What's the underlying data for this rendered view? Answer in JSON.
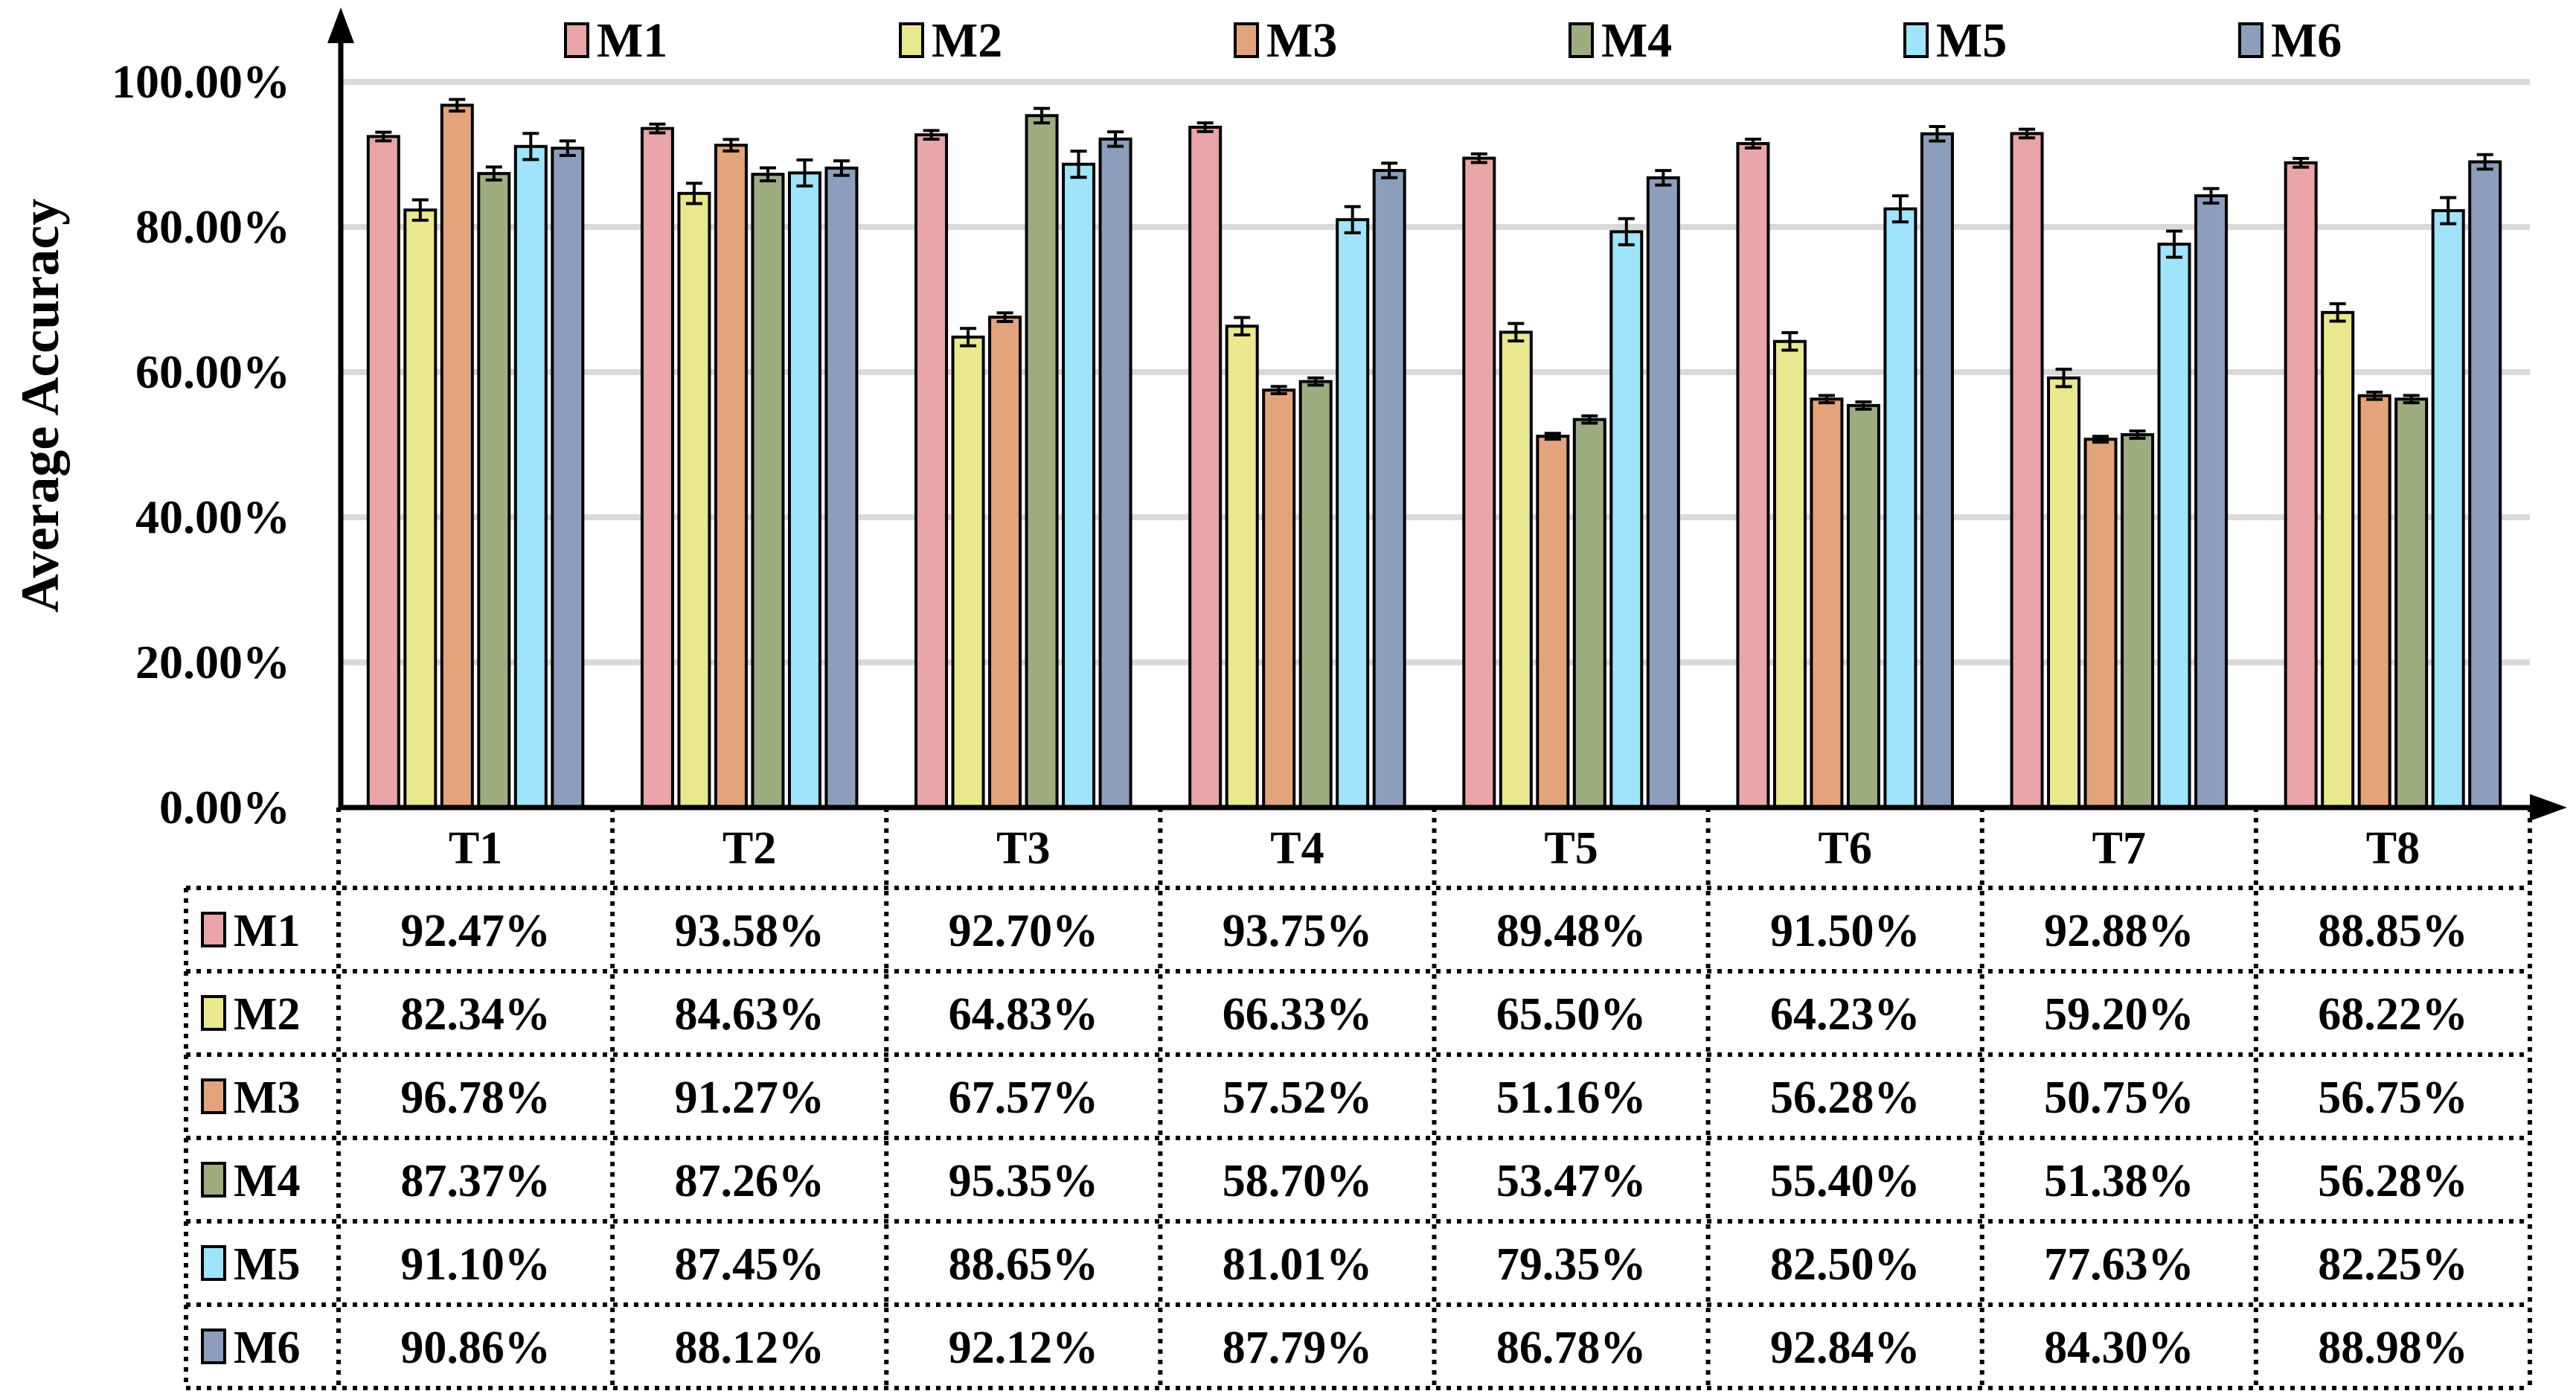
{
  "chart_data": {
    "type": "bar",
    "title": "",
    "xlabel": "",
    "ylabel": "Average Accuracy",
    "ylim": [
      0,
      100
    ],
    "yticks": [
      "0.00%",
      "20.00%",
      "40.00%",
      "60.00%",
      "80.00%",
      "100.00%"
    ],
    "grid": true,
    "legend_position": "top",
    "categories": [
      "T1",
      "T2",
      "T3",
      "T4",
      "T5",
      "T6",
      "T7",
      "T8"
    ],
    "series": [
      {
        "name": "M1",
        "color": "#E9A5A7",
        "values": [
          92.47,
          93.58,
          92.7,
          93.75,
          89.48,
          91.5,
          92.88,
          88.85
        ],
        "labels": [
          "92.47%",
          "93.58%",
          "92.70%",
          "93.75%",
          "89.48%",
          "91.50%",
          "92.88%",
          "88.85%"
        ],
        "errors": [
          0.6,
          0.6,
          0.6,
          0.6,
          0.6,
          0.6,
          0.6,
          0.6
        ]
      },
      {
        "name": "M2",
        "color": "#E9E88F",
        "values": [
          82.34,
          84.63,
          64.83,
          66.33,
          65.5,
          64.23,
          59.2,
          68.22
        ],
        "labels": [
          "82.34%",
          "84.63%",
          "64.83%",
          "66.33%",
          "65.50%",
          "64.23%",
          "59.20%",
          "68.22%"
        ],
        "errors": [
          1.4,
          1.4,
          1.2,
          1.2,
          1.2,
          1.2,
          1.2,
          1.2
        ]
      },
      {
        "name": "M3",
        "color": "#E3A47C",
        "values": [
          96.78,
          91.27,
          67.57,
          57.52,
          51.16,
          56.28,
          50.75,
          56.75
        ],
        "labels": [
          "96.78%",
          "91.27%",
          "67.57%",
          "57.52%",
          "51.16%",
          "56.28%",
          "50.75%",
          "56.75%"
        ],
        "errors": [
          0.8,
          0.8,
          0.6,
          0.5,
          0.4,
          0.5,
          0.4,
          0.5
        ]
      },
      {
        "name": "M4",
        "color": "#9DAD80",
        "values": [
          87.37,
          87.26,
          95.35,
          58.7,
          53.47,
          55.4,
          51.38,
          56.28
        ],
        "labels": [
          "87.37%",
          "87.26%",
          "95.35%",
          "58.70%",
          "53.47%",
          "55.40%",
          "51.38%",
          "56.28%"
        ],
        "errors": [
          0.9,
          0.9,
          1.0,
          0.5,
          0.5,
          0.5,
          0.5,
          0.5
        ]
      },
      {
        "name": "M5",
        "color": "#9FE4FA",
        "values": [
          91.1,
          87.45,
          88.65,
          81.01,
          79.35,
          82.5,
          77.63,
          82.25
        ],
        "labels": [
          "91.10%",
          "87.45%",
          "88.65%",
          "81.01%",
          "79.35%",
          "82.50%",
          "77.63%",
          "82.25%"
        ],
        "errors": [
          1.8,
          1.8,
          1.8,
          1.8,
          1.8,
          1.8,
          1.8,
          1.8
        ]
      },
      {
        "name": "M6",
        "color": "#8C9EBC",
        "values": [
          90.86,
          88.12,
          92.12,
          87.79,
          86.78,
          92.84,
          84.3,
          88.98
        ],
        "labels": [
          "90.86%",
          "88.12%",
          "92.12%",
          "87.79%",
          "86.78%",
          "92.84%",
          "84.30%",
          "88.98%"
        ],
        "errors": [
          1.0,
          1.0,
          1.0,
          1.0,
          1.0,
          1.0,
          1.0,
          1.0
        ]
      }
    ]
  }
}
